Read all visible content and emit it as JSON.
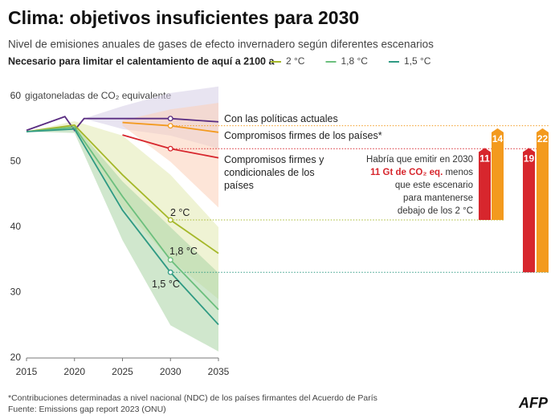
{
  "chart_data": {
    "type": "line",
    "title": "Clima: objetivos insuficientes para 2030",
    "subtitle": "Nivel de emisiones anuales de gases de efecto invernadero según diferentes escenarios",
    "legend_title": "Necesario para limitar el calentamiento de aquí a 2100 a",
    "y_label": "gigatoneladas de CO₂ equivalente",
    "xlim": [
      2015,
      2035
    ],
    "xticks": [
      2015,
      2020,
      2025,
      2030,
      2035
    ],
    "ylim": [
      20,
      60
    ],
    "yticks": [
      20,
      30,
      40,
      50,
      60
    ],
    "grid": false,
    "series": [
      {
        "name": "Con las políticas actuales",
        "color": "#5a2d82",
        "band_color": "#d6cde6",
        "legend": false,
        "x": [
          2015,
          2019,
          2020,
          2021,
          2025,
          2030,
          2035
        ],
        "values": [
          54.8,
          56.9,
          54.8,
          56.6,
          56.6,
          56.6,
          56.1
        ],
        "low": [
          null,
          null,
          null,
          56.6,
          55,
          54,
          52
        ],
        "high": [
          null,
          null,
          null,
          56.6,
          58.5,
          60.5,
          61.5
        ]
      },
      {
        "name": "Compromisos firmes de los países*",
        "color": "#f39a1e",
        "band_color": "#fbcfb8",
        "legend": false,
        "x": [
          2025,
          2030,
          2035
        ],
        "values": [
          56.0,
          55.5,
          54.5
        ],
        "low": [
          55.5,
          50,
          43
        ],
        "high": [
          56.3,
          58,
          59
        ]
      },
      {
        "name": "Compromisos firmes y condicionales de los países",
        "color": "#d7262d",
        "legend": false,
        "x": [
          2025,
          2030,
          2035
        ],
        "values": [
          54.1,
          52.0,
          50.6
        ]
      },
      {
        "name": "2 °C",
        "color": "#a5b82a",
        "band_color": "#e2eab0",
        "legend": true,
        "x": [
          2015,
          2020,
          2025,
          2030,
          2035
        ],
        "values": [
          54.6,
          55.6,
          48.0,
          41.1,
          36.0
        ],
        "low": [
          54.6,
          55,
          43,
          35,
          29
        ],
        "high": [
          54.6,
          56.2,
          54,
          48,
          40
        ]
      },
      {
        "name": "1,8 °C",
        "color": "#6cbf7e",
        "legend": true,
        "x": [
          2015,
          2020,
          2025,
          2030,
          2035
        ],
        "values": [
          54.6,
          55.3,
          44.7,
          35.0,
          27.4
        ]
      },
      {
        "name": "1,5 °C",
        "color": "#2f9a83",
        "band_color": "#a9d3a4",
        "legend": true,
        "x": [
          2015,
          2020,
          2025,
          2030,
          2035
        ],
        "values": [
          54.6,
          55.0,
          42.6,
          33.1,
          25.1
        ],
        "low": [
          54.6,
          54.4,
          38,
          25,
          21
        ],
        "high": [
          54.6,
          55.6,
          47,
          40,
          33
        ]
      }
    ],
    "gaps": {
      "values": [
        11,
        14,
        19,
        22
      ],
      "colors": [
        "#d7262d",
        "#f39a1e",
        "#d7262d",
        "#f39a1e"
      ]
    },
    "annotation": {
      "lines": [
        "Habría que emitir en 2030",
        "11 Gt de CO₂ eq.",
        "menos",
        "que este escenario",
        "para mantenerse",
        "debajo de los 2 °C"
      ]
    },
    "footnote": "*Contribuciones determinadas a nivel nacional (NDC) de los países firmantes del Acuerdo de París",
    "source": "Fuente: Emissions gap report 2023 (ONU)",
    "logo": "AFP"
  }
}
